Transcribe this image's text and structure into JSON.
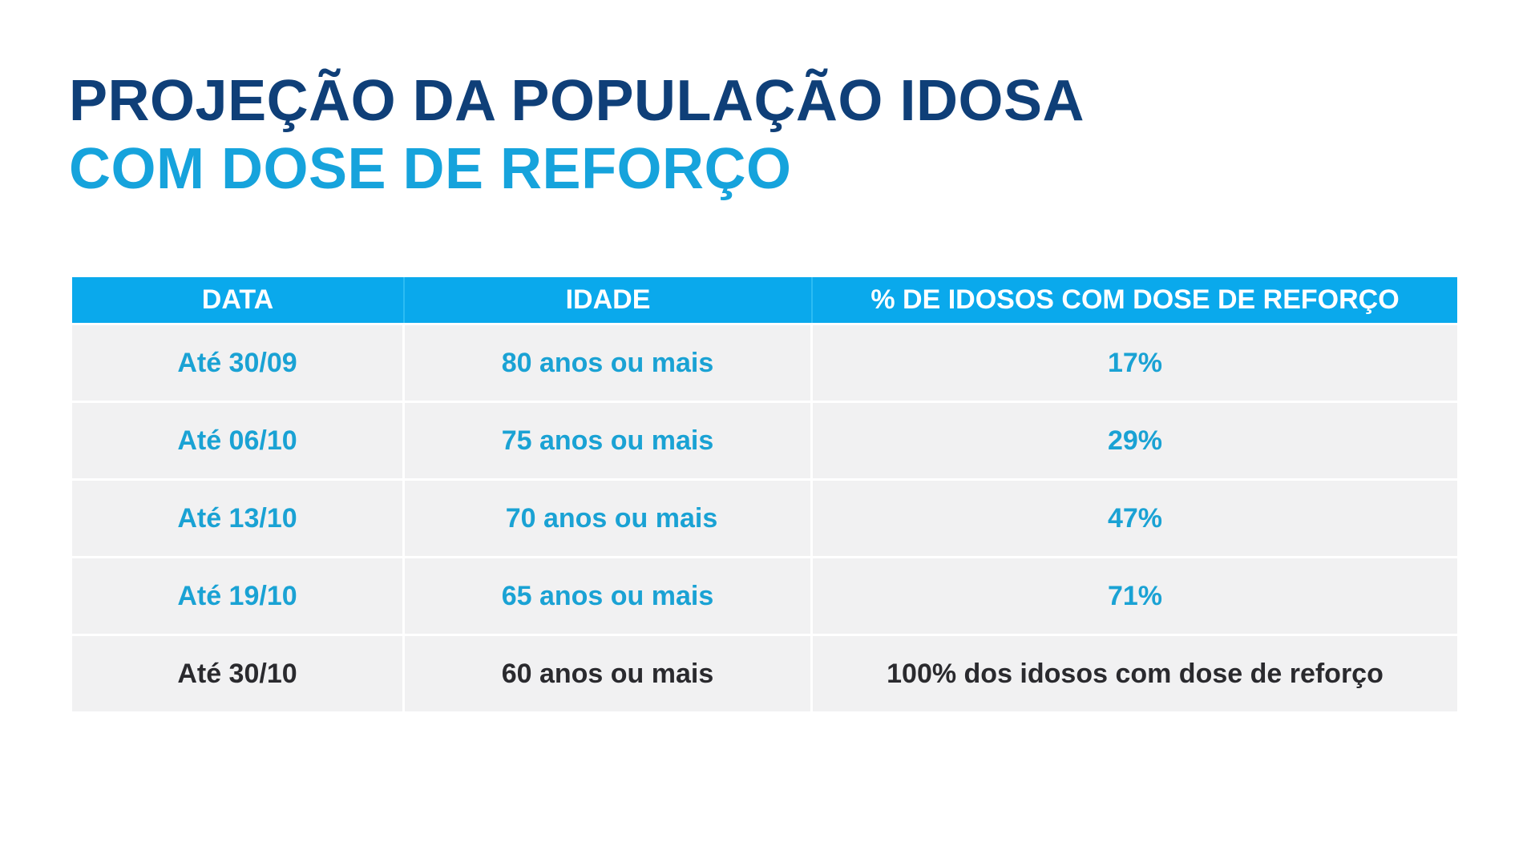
{
  "title": {
    "line1": "PROJEÇÃO DA POPULAÇÃO IDOSA",
    "line2": "COM DOSE DE REFORÇO"
  },
  "colors": {
    "title_dark": "#0f3f78",
    "title_accent": "#16a3dc",
    "header_bg": "#0aa9ec",
    "row_bg": "#f1f1f2",
    "row_text_accent": "#1aa2d4",
    "row_text_final": "#2a2a2e"
  },
  "table": {
    "headers": [
      "DATA",
      "IDADE",
      "% DE IDOSOS COM DOSE DE REFORÇO"
    ],
    "rows": [
      [
        "Até 30/09",
        "80 anos ou mais",
        "17%"
      ],
      [
        "Até 06/10",
        "75 anos ou mais",
        "29%"
      ],
      [
        "Até 13/10",
        "70 anos ou mais",
        "47%"
      ],
      [
        "Até 19/10",
        "65 anos ou mais",
        "71%"
      ],
      [
        "Até 30/10",
        "60 anos ou mais",
        "100% dos idosos com dose de reforço"
      ]
    ]
  }
}
